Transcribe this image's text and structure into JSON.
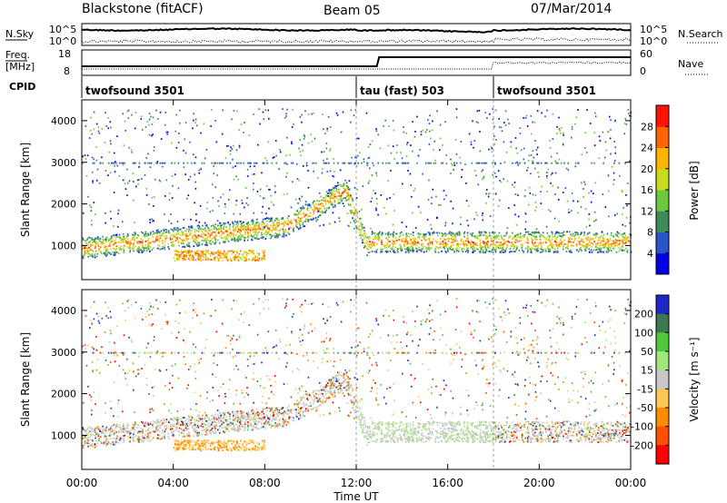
{
  "header": {
    "station": "Blackstone (fitACF)",
    "beam": "Beam 05",
    "date": "07/Mar/2014"
  },
  "strips": {
    "nsky": {
      "label": "N.Sky",
      "right_label": "N.Search",
      "left_ticks": [
        "10^5",
        "10^0"
      ],
      "right_ticks": [
        "10^5",
        "10^0"
      ]
    },
    "freq": {
      "label": "Freq.",
      "unit": "[MHz]",
      "right_label": "Nave",
      "left_ticks": [
        "18",
        "8"
      ],
      "right_ticks": [
        "60",
        "0"
      ]
    },
    "cpid": {
      "label": "CPID",
      "segments": [
        {
          "name": "twofsound 3501",
          "start": 0,
          "end": 12
        },
        {
          "name": "tau (fast) 503",
          "start": 12,
          "end": 18
        },
        {
          "name": "twofsound 3501",
          "start": 18,
          "end": 24
        }
      ]
    }
  },
  "chart_data": [
    {
      "type": "heatmap",
      "name": "Power",
      "ylabel": "Slant Range [km]",
      "ylim": [
        180,
        4500
      ],
      "yticks": [
        "1000",
        "2000",
        "3000",
        "4000"
      ],
      "xlim": [
        0,
        24
      ],
      "colorbar": {
        "label": "Power [dB]",
        "ticks": [
          "4",
          "8",
          "12",
          "16",
          "20",
          "24",
          "28"
        ],
        "range": [
          0,
          30
        ],
        "colors": [
          "#0000e6",
          "#2a55c8",
          "#3c8c5a",
          "#6cc83c",
          "#c8dc1e",
          "#ffb400",
          "#ff6400",
          "#ff1400"
        ]
      }
    },
    {
      "type": "heatmap",
      "name": "Velocity",
      "ylabel": "Slant Range [km]",
      "ylim": [
        180,
        4500
      ],
      "yticks": [
        "1000",
        "2000",
        "3000",
        "4000"
      ],
      "xlim": [
        0,
        24
      ],
      "colorbar": {
        "label": "Velocity [m s⁻¹]",
        "ticks": [
          "200",
          "100",
          "50",
          "15",
          "-15",
          "-50",
          "-100",
          "-200"
        ],
        "colors": [
          "#1e28c8",
          "#3c7850",
          "#50c83c",
          "#a0e678",
          "#c8c8c8",
          "#ffc850",
          "#ff8c00",
          "#ff5000",
          "#ff0000"
        ]
      }
    }
  ],
  "xaxis": {
    "label": "Time UT",
    "ticks": [
      "00:00",
      "04:00",
      "08:00",
      "12:00",
      "16:00",
      "20:00",
      "00:00"
    ]
  }
}
